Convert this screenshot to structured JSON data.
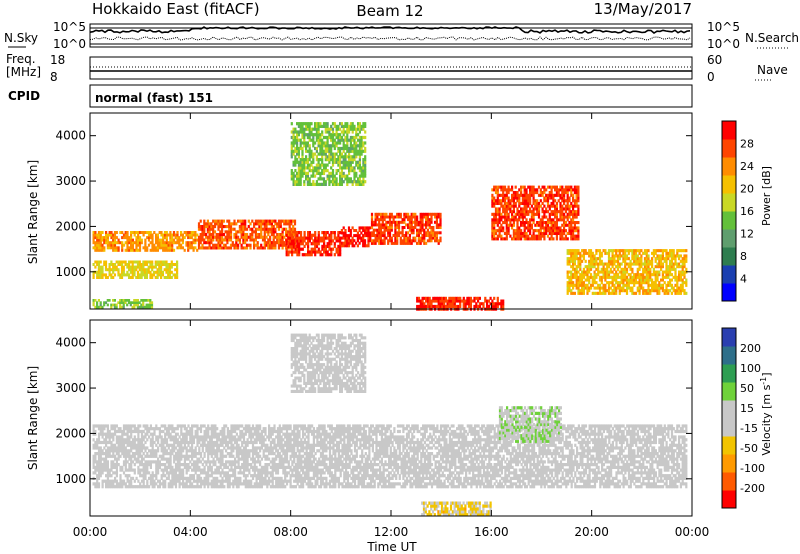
{
  "header": {
    "radar_title": "Hokkaido East (fitACF)",
    "beam_label": "Beam 12",
    "date": "13/May/2017"
  },
  "panels": {
    "nsky_label": "N.Sky",
    "nsky_ticks": [
      "10^5",
      "10^0"
    ],
    "nsearch_label": "N.Search",
    "nsearch_ticks": [
      "10^5",
      "10^0"
    ],
    "freq_label_line1": "Freq.",
    "freq_label_line2": "[MHz]",
    "freq_ticks": [
      "18",
      "8"
    ],
    "nave_label": "Nave",
    "nave_ticks": [
      "60",
      "0"
    ],
    "cpid_label": "CPID",
    "cpid_value": "normal (fast) 151"
  },
  "colors": {
    "power_scale": [
      "#0000ff",
      "#1a3fb0",
      "#2e7d4f",
      "#5f9e6e",
      "#63c03a",
      "#c9d825",
      "#f5c000",
      "#ff8c00",
      "#ff4500",
      "#ff0000"
    ],
    "velocity_scale": [
      "#ff0000",
      "#ff5a00",
      "#ff9a00",
      "#f2c400",
      "#c8c8c8",
      "#c8c8c8",
      "#6fd23a",
      "#2e9e52",
      "#2e6f8a",
      "#2a3fb0"
    ],
    "ground_scatter": "#c0c0c0"
  },
  "chart_data": [
    {
      "type": "heatmap",
      "name": "power",
      "ylabel": "Slant Range [km]",
      "x_ticks": [
        "00:00",
        "04:00",
        "08:00",
        "12:00",
        "16:00",
        "20:00",
        "00:00"
      ],
      "y_ticks": [
        "1000",
        "2000",
        "3000",
        "4000"
      ],
      "xlim_hours": [
        0,
        24
      ],
      "ylim_km": [
        180,
        4500
      ],
      "colorbar": {
        "label": "Power [dB]",
        "ticks": [
          "4",
          "8",
          "12",
          "16",
          "20",
          "24",
          "28"
        ],
        "range": [
          0,
          30
        ]
      },
      "regions": [
        {
          "t0": 0.1,
          "t1": 4.3,
          "r0": 1450,
          "r1": 1900,
          "value": 22
        },
        {
          "t0": 0.1,
          "t1": 3.5,
          "r0": 850,
          "r1": 1250,
          "value": 18
        },
        {
          "t0": 0.1,
          "t1": 2.5,
          "r0": 200,
          "r1": 400,
          "value": 14
        },
        {
          "t0": 4.3,
          "t1": 8.2,
          "r0": 1500,
          "r1": 2150,
          "value": 25
        },
        {
          "t0": 7.8,
          "t1": 10.0,
          "r0": 1350,
          "r1": 1900,
          "value": 27
        },
        {
          "t0": 10.0,
          "t1": 11.2,
          "r0": 1550,
          "r1": 2000,
          "value": 28
        },
        {
          "t0": 11.2,
          "t1": 14.0,
          "r0": 1600,
          "r1": 2300,
          "value": 26
        },
        {
          "t0": 13.0,
          "t1": 16.5,
          "r0": 150,
          "r1": 450,
          "value": 27
        },
        {
          "t0": 16.0,
          "t1": 19.5,
          "r0": 1700,
          "r1": 2900,
          "value": 26
        },
        {
          "t0": 19.0,
          "t1": 23.8,
          "r0": 500,
          "r1": 1500,
          "value": 20
        },
        {
          "t0": 8.0,
          "t1": 11.0,
          "r0": 2900,
          "r1": 4300,
          "value": 14
        }
      ]
    },
    {
      "type": "heatmap",
      "name": "velocity",
      "ylabel": "Slant Range [km]",
      "xlabel": "Time UT",
      "x_ticks": [
        "00:00",
        "04:00",
        "08:00",
        "12:00",
        "16:00",
        "20:00",
        "00:00"
      ],
      "y_ticks": [
        "1000",
        "2000",
        "3000",
        "4000"
      ],
      "xlim_hours": [
        0,
        24
      ],
      "ylim_km": [
        180,
        4500
      ],
      "colorbar": {
        "label": "Velocity [m s",
        "label_sup": "-1",
        "label_end": "]",
        "ticks": [
          "200",
          "100",
          "50",
          "15",
          "-15",
          "-50",
          "-100",
          "-200"
        ],
        "range": [
          -250,
          250
        ]
      },
      "regions": [
        {
          "t0": 0.1,
          "t1": 23.8,
          "r0": 800,
          "r1": 2200,
          "value": 0
        },
        {
          "t0": 13.2,
          "t1": 16.0,
          "r0": 180,
          "r1": 500,
          "value": -60
        },
        {
          "t0": 16.3,
          "t1": 18.8,
          "r0": 1800,
          "r1": 2600,
          "value": 40
        },
        {
          "t0": 8.0,
          "t1": 11.0,
          "r0": 2900,
          "r1": 4200,
          "value": 0
        }
      ]
    }
  ]
}
